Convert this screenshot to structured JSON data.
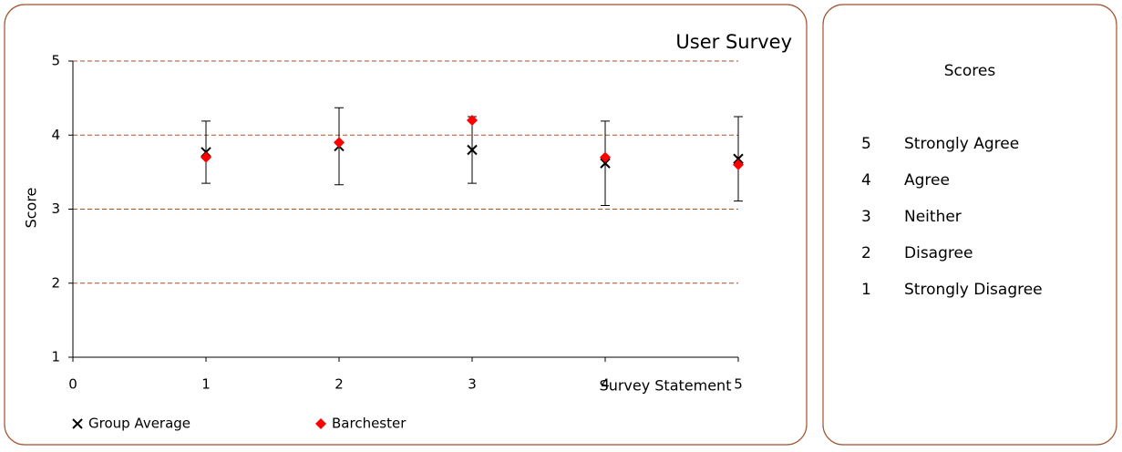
{
  "chart_data": {
    "type": "scatter",
    "title": "User Survey",
    "x_label": "Survey Statement",
    "y_label": "Score",
    "xlim": [
      0,
      5
    ],
    "xticks": [
      0,
      1,
      2,
      3,
      4,
      5
    ],
    "ylim": [
      1,
      5
    ],
    "yticks": [
      1,
      2,
      3,
      4,
      5
    ],
    "grid": true,
    "legend": "bottom",
    "series": [
      {
        "name": "Group Average",
        "color": "#000000",
        "marker": "x",
        "x": [
          1,
          2,
          3,
          4,
          5
        ],
        "values": [
          3.77,
          3.85,
          3.8,
          3.62,
          3.68
        ],
        "errors": [
          0.42,
          0.52,
          0.45,
          0.57,
          0.57
        ]
      },
      {
        "name": "Barchester",
        "color": "#ff0000",
        "marker": "diamond",
        "x": [
          1,
          2,
          3,
          4,
          5
        ],
        "values": [
          3.7,
          3.9,
          4.2,
          3.7,
          3.6
        ]
      }
    ]
  },
  "scores_panel": {
    "title": "Scores",
    "items": [
      {
        "score": 5,
        "label": "Strongly Agree"
      },
      {
        "score": 4,
        "label": "Agree"
      },
      {
        "score": 3,
        "label": "Neither"
      },
      {
        "score": 2,
        "label": "Disagree"
      },
      {
        "score": 1,
        "label": "Strongly Disagree"
      }
    ]
  }
}
